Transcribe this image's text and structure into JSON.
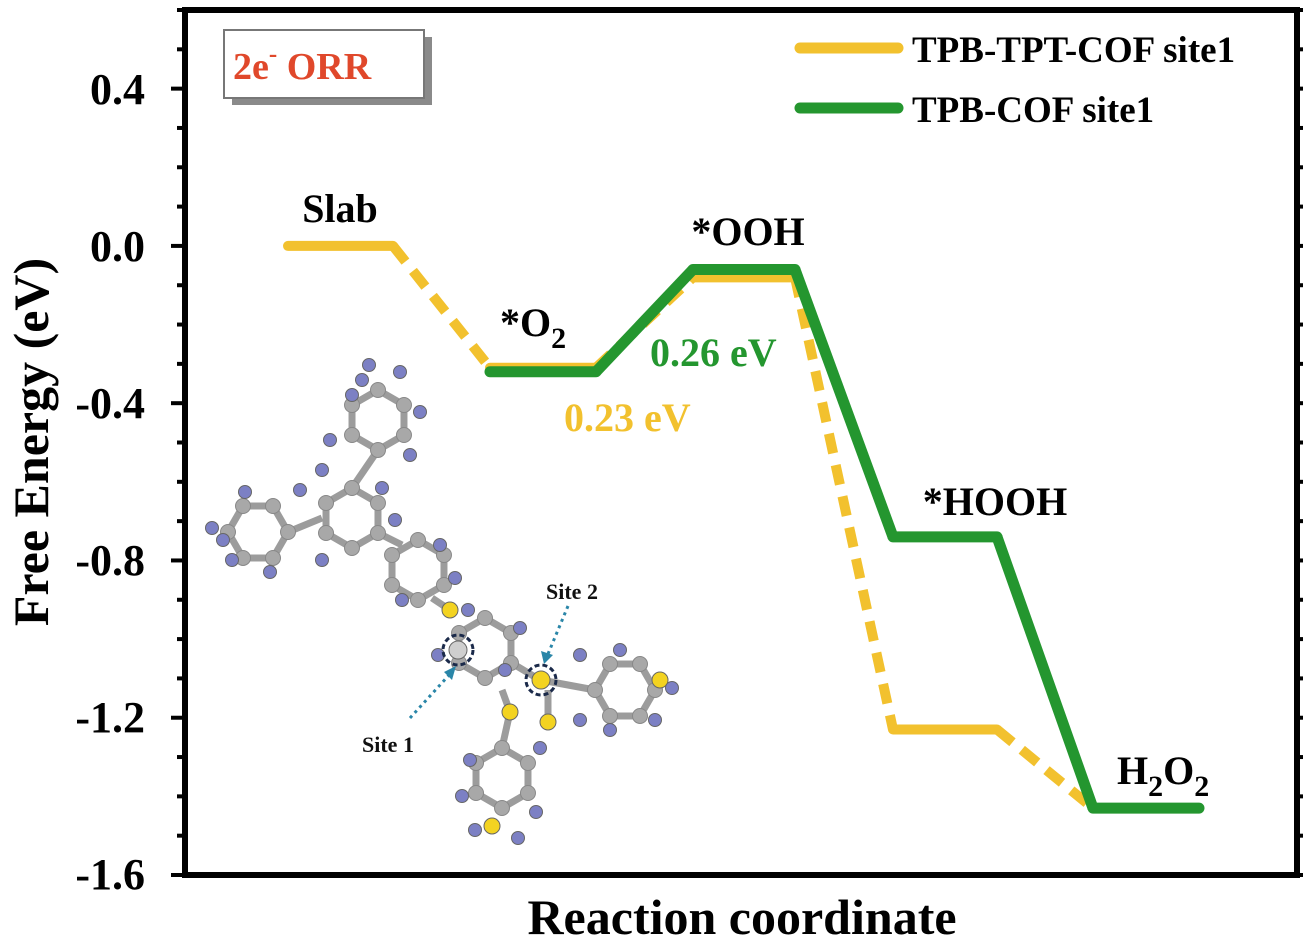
{
  "chart_data": {
    "type": "line",
    "title": "",
    "xlabel": "Reaction coordinate",
    "ylabel": "Free Energy (eV)",
    "ylim": [
      -1.6,
      0.6
    ],
    "yticks": [
      0.4,
      0.0,
      -0.4,
      -0.8,
      -1.2,
      -1.6
    ],
    "ytick_labels": [
      "0.4",
      "0.0",
      "-0.4",
      "-0.8",
      "-1.2",
      "-1.6"
    ],
    "states": [
      "Slab",
      "*O₂",
      "*OOH",
      "*HOOH",
      "H₂O₂"
    ],
    "state_labels": {
      "slab": "Slab",
      "o2_base": "*O",
      "o2_sub": "2",
      "ooh": "*OOH",
      "hooh": "*HOOH",
      "h2o2_h": "H",
      "h2o2_sub1": "2",
      "h2o2_o": "O",
      "h2o2_sub2": "2"
    },
    "series": [
      {
        "name": "TPB-TPT-COF site1",
        "color": "#f2c12e",
        "style": "dashed-connectors",
        "values": [
          0.0,
          -0.31,
          -0.08,
          -1.23,
          -1.43
        ]
      },
      {
        "name": "TPB-COF site1",
        "color": "#24962f",
        "style": "solid",
        "values": [
          null,
          -0.32,
          -0.06,
          -0.74,
          -1.43
        ]
      }
    ],
    "annotations": {
      "badge_base": "2e",
      "badge_sup": "-",
      "badge_rest": " ORR",
      "tpb_cof_barrier": "0.26 eV",
      "tpb_tpt_barrier": "0.23 eV",
      "site1": "Site 1",
      "site2": "Site 2"
    },
    "colors": {
      "badge_text": "#e0482b",
      "tpb_tpt_barrier": "#f2c12e",
      "tpb_cof_barrier": "#24962f",
      "carbon": "#a8a8a8",
      "nitrogen": "#7c80c4",
      "sulfur": "#f3d321",
      "arrow": "#2a86a8"
    }
  }
}
